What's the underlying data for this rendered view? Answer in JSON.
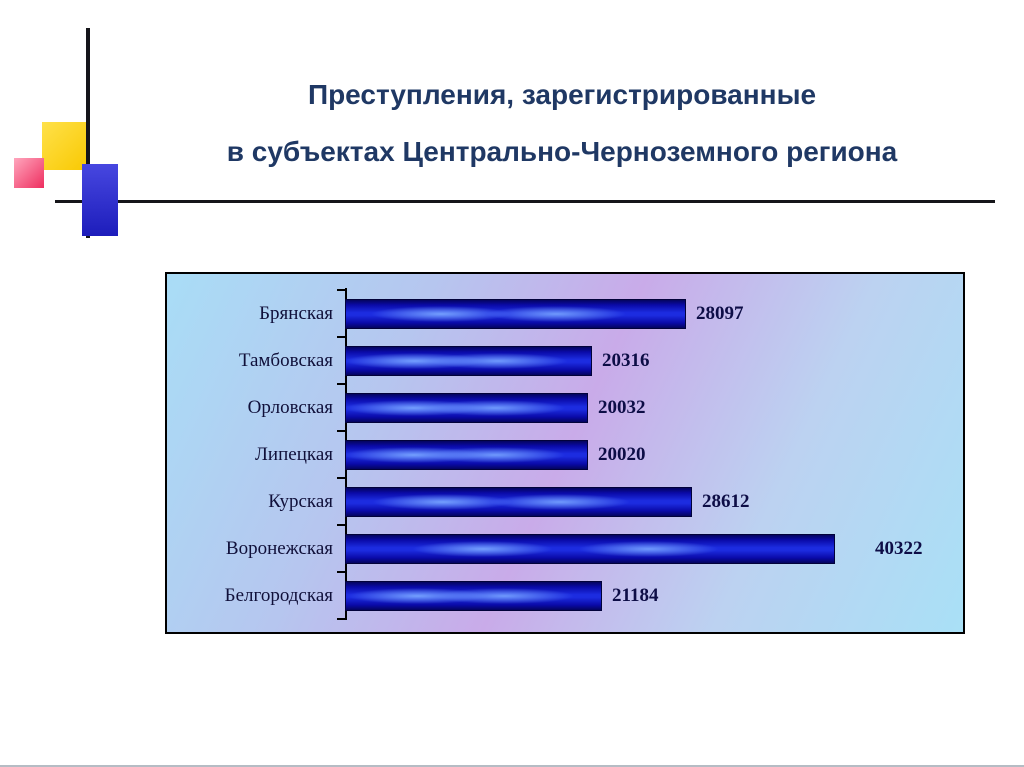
{
  "slide": {
    "title_line1": "Преступления, зарегистрированные",
    "title_line2": "в субъектах Центрально-Черноземного региона"
  },
  "chart_data": {
    "type": "bar",
    "orientation": "horizontal",
    "title": "Преступления, зарегистрированные в субъектах Центрально-Черноземного региона",
    "categories": [
      "Брянская",
      "Тамбовская",
      "Орловская",
      "Липецкая",
      "Курская",
      "Воронежская",
      "Белгородская"
    ],
    "values": [
      28097,
      20316,
      20032,
      20020,
      28612,
      40322,
      21184
    ],
    "xlabel": "",
    "ylabel": "",
    "xlim": [
      0,
      42000
    ],
    "grid": false,
    "legend": false
  },
  "colors": {
    "title_color": "#1f3864",
    "bar_base": "#0a0aa8",
    "bar_highlight": "#1c2ce0",
    "value_label_color": "#0d0d46",
    "accent_yellow": "#f8c800",
    "accent_pink": "#ee2e5f",
    "accent_blue": "#1d1dbb",
    "chart_bg_blue": "#a9ddf6",
    "chart_bg_purple": "#c9abe9"
  }
}
